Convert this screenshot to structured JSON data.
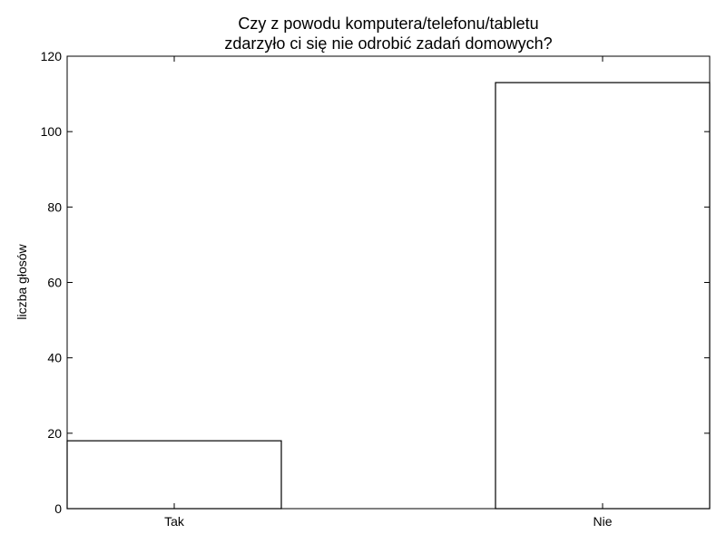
{
  "chart_data": {
    "type": "bar",
    "title_lines": [
      "Czy z powodu komputera/telefonu/tabletu",
      "zdarzyło ci się nie odrobić zadań domowych?"
    ],
    "xlabel": "",
    "ylabel": "liczba głosów",
    "categories": [
      "Tak",
      "Nie"
    ],
    "values": [
      18,
      113
    ],
    "ylim": [
      0,
      120
    ],
    "yticks": [
      0,
      20,
      40,
      60,
      80,
      100,
      120
    ],
    "grid": false,
    "legend": "none",
    "bar_fill": "#ffffff",
    "bar_edge": "#000000"
  }
}
